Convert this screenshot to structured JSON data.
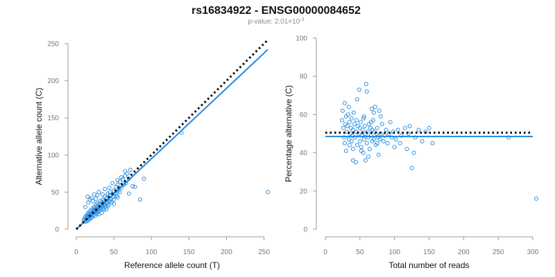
{
  "figure": {
    "title": "rs16834922 - ENSG00000084652",
    "subtitle_prefix": "p-value: 2.01×10",
    "subtitle_exp": "-3"
  },
  "colors": {
    "points": "#2b8fe0",
    "fit": "#1e88e5",
    "reference": "#000000",
    "axes": "#9a9a9a"
  },
  "chart_data": [
    {
      "type": "scatter",
      "xlabel": "Reference allele count (T)",
      "ylabel": "Alternative allele count (C)",
      "xlim": [
        0,
        255
      ],
      "ylim": [
        0,
        250
      ],
      "xticks": [
        0,
        50,
        100,
        150,
        200,
        250
      ],
      "yticks": [
        0,
        50,
        100,
        150,
        200,
        250
      ],
      "grid": false,
      "lines": {
        "fit": {
          "x": [
            0,
            255
          ],
          "y": [
            0,
            242
          ]
        },
        "reference": {
          "x": [
            0,
            255
          ],
          "y": [
            0,
            255
          ],
          "style": "dotted"
        }
      },
      "points": [
        [
          10,
          12
        ],
        [
          11,
          14
        ],
        [
          12,
          10
        ],
        [
          12,
          16
        ],
        [
          13,
          13
        ],
        [
          13,
          18
        ],
        [
          14,
          11
        ],
        [
          14,
          15
        ],
        [
          15,
          20
        ],
        [
          15,
          17
        ],
        [
          16,
          12
        ],
        [
          16,
          22
        ],
        [
          17,
          16
        ],
        [
          17,
          19
        ],
        [
          18,
          14
        ],
        [
          18,
          24
        ],
        [
          19,
          18
        ],
        [
          19,
          21
        ],
        [
          20,
          15
        ],
        [
          20,
          26
        ],
        [
          21,
          20
        ],
        [
          21,
          17
        ],
        [
          22,
          23
        ],
        [
          22,
          28
        ],
        [
          23,
          19
        ],
        [
          23,
          25
        ],
        [
          24,
          22
        ],
        [
          24,
          30
        ],
        [
          25,
          18
        ],
        [
          25,
          27
        ],
        [
          26,
          24
        ],
        [
          26,
          33
        ],
        [
          27,
          21
        ],
        [
          27,
          29
        ],
        [
          28,
          26
        ],
        [
          28,
          35
        ],
        [
          29,
          23
        ],
        [
          29,
          31
        ],
        [
          30,
          28
        ],
        [
          30,
          20
        ],
        [
          31,
          34
        ],
        [
          31,
          25
        ],
        [
          32,
          30
        ],
        [
          32,
          38
        ],
        [
          33,
          27
        ],
        [
          33,
          32
        ],
        [
          34,
          36
        ],
        [
          34,
          22
        ],
        [
          35,
          31
        ],
        [
          35,
          40
        ],
        [
          36,
          28
        ],
        [
          36,
          34
        ],
        [
          37,
          38
        ],
        [
          37,
          26
        ],
        [
          38,
          33
        ],
        [
          38,
          44
        ],
        [
          39,
          30
        ],
        [
          39,
          36
        ],
        [
          40,
          42
        ],
        [
          40,
          27
        ],
        [
          41,
          35
        ],
        [
          42,
          39
        ],
        [
          42,
          48
        ],
        [
          43,
          33
        ],
        [
          44,
          45
        ],
        [
          45,
          38
        ],
        [
          45,
          50
        ],
        [
          46,
          41
        ],
        [
          47,
          36
        ],
        [
          48,
          47
        ],
        [
          49,
          43
        ],
        [
          50,
          52
        ],
        [
          50,
          40
        ],
        [
          52,
          48
        ],
        [
          53,
          57
        ],
        [
          54,
          45
        ],
        [
          55,
          60
        ],
        [
          56,
          52
        ],
        [
          58,
          64
        ],
        [
          58,
          50
        ],
        [
          60,
          56
        ],
        [
          62,
          67
        ],
        [
          63,
          60
        ],
        [
          65,
          72
        ],
        [
          66,
          62
        ],
        [
          68,
          75
        ],
        [
          70,
          68
        ],
        [
          70,
          48
        ],
        [
          72,
          80
        ],
        [
          75,
          58
        ],
        [
          15,
          44
        ],
        [
          18,
          40
        ],
        [
          20,
          42
        ],
        [
          24,
          47
        ],
        [
          28,
          46
        ],
        [
          22,
          38
        ],
        [
          12,
          30
        ],
        [
          16,
          36
        ],
        [
          30,
          50
        ],
        [
          35,
          47
        ],
        [
          38,
          54
        ],
        [
          26,
          41
        ],
        [
          44,
          56
        ],
        [
          48,
          62
        ],
        [
          55,
          66
        ],
        [
          60,
          70
        ],
        [
          65,
          78
        ],
        [
          42,
          31
        ],
        [
          50,
          34
        ],
        [
          55,
          43
        ],
        [
          90,
          68
        ],
        [
          85,
          40
        ],
        [
          78,
          57
        ],
        [
          140,
          130
        ],
        [
          255,
          50
        ]
      ]
    },
    {
      "type": "scatter",
      "xlabel": "Total number of reads",
      "ylabel": "Percentage alternative (C)",
      "xlim": [
        0,
        300
      ],
      "ylim": [
        0,
        100
      ],
      "xticks": [
        0,
        50,
        100,
        150,
        200,
        250,
        300
      ],
      "yticks": [
        0,
        20,
        40,
        60,
        80,
        100
      ],
      "grid": false,
      "lines": {
        "fit": {
          "x": [
            0,
            300
          ],
          "y": [
            48.5,
            48.5
          ]
        },
        "reference": {
          "x": [
            0,
            300
          ],
          "y": [
            50.5,
            50.5
          ],
          "style": "dotted"
        }
      },
      "points": [
        [
          24,
          57
        ],
        [
          25,
          62
        ],
        [
          26,
          53
        ],
        [
          27,
          48
        ],
        [
          28,
          66
        ],
        [
          28,
          45
        ],
        [
          29,
          55
        ],
        [
          30,
          59
        ],
        [
          30,
          41
        ],
        [
          31,
          51
        ],
        [
          32,
          54
        ],
        [
          33,
          60
        ],
        [
          34,
          47
        ],
        [
          35,
          56
        ],
        [
          35,
          44
        ],
        [
          36,
          50
        ],
        [
          37,
          53
        ],
        [
          38,
          58
        ],
        [
          38,
          46
        ],
        [
          39,
          49
        ],
        [
          40,
          52
        ],
        [
          40,
          42
        ],
        [
          41,
          61
        ],
        [
          42,
          55
        ],
        [
          43,
          48
        ],
        [
          44,
          35
        ],
        [
          45,
          51
        ],
        [
          45,
          57
        ],
        [
          46,
          44
        ],
        [
          47,
          54
        ],
        [
          48,
          50
        ],
        [
          49,
          73
        ],
        [
          50,
          46
        ],
        [
          50,
          53
        ],
        [
          51,
          56
        ],
        [
          52,
          43
        ],
        [
          53,
          49
        ],
        [
          54,
          52
        ],
        [
          55,
          40
        ],
        [
          55,
          58
        ],
        [
          56,
          47
        ],
        [
          57,
          54
        ],
        [
          58,
          36
        ],
        [
          58,
          50
        ],
        [
          59,
          76
        ],
        [
          60,
          72
        ],
        [
          60,
          45
        ],
        [
          61,
          51
        ],
        [
          62,
          48
        ],
        [
          63,
          55
        ],
        [
          64,
          42
        ],
        [
          65,
          53
        ],
        [
          66,
          49
        ],
        [
          67,
          63
        ],
        [
          68,
          46
        ],
        [
          68,
          52
        ],
        [
          69,
          57
        ],
        [
          70,
          47
        ],
        [
          71,
          51
        ],
        [
          72,
          64
        ],
        [
          73,
          44
        ],
        [
          74,
          50
        ],
        [
          75,
          53
        ],
        [
          76,
          48
        ],
        [
          77,
          39
        ],
        [
          78,
          62
        ],
        [
          79,
          47
        ],
        [
          80,
          50
        ],
        [
          82,
          55
        ],
        [
          84,
          46
        ],
        [
          86,
          49
        ],
        [
          88,
          52
        ],
        [
          90,
          45
        ],
        [
          92,
          50
        ],
        [
          94,
          56
        ],
        [
          96,
          48
        ],
        [
          98,
          51
        ],
        [
          100,
          43
        ],
        [
          102,
          47
        ],
        [
          105,
          52
        ],
        [
          108,
          45
        ],
        [
          110,
          49
        ],
        [
          115,
          53
        ],
        [
          118,
          42
        ],
        [
          120,
          50
        ],
        [
          122,
          54
        ],
        [
          125,
          32
        ],
        [
          128,
          40
        ],
        [
          130,
          48
        ],
        [
          135,
          52
        ],
        [
          140,
          46
        ],
        [
          145,
          51
        ],
        [
          150,
          53
        ],
        [
          155,
          45
        ],
        [
          265,
          48
        ],
        [
          305,
          16
        ],
        [
          34,
          64
        ],
        [
          40,
          36
        ],
        [
          46,
          68
        ],
        [
          52,
          41
        ],
        [
          56,
          59
        ],
        [
          62,
          38
        ],
        [
          66,
          56
        ],
        [
          70,
          61
        ],
        [
          75,
          45
        ],
        [
          80,
          59
        ]
      ]
    }
  ]
}
